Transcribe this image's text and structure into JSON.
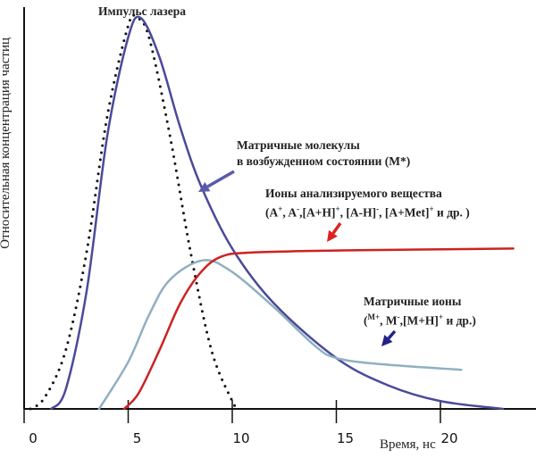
{
  "chart_data": {
    "type": "line",
    "title": "",
    "xlabel": "Время, нс",
    "ylabel": "Относительная концентрация частиц",
    "xlim": [
      0,
      24
    ],
    "ylim": [
      0,
      1
    ],
    "xticks": [
      "0",
      "5",
      "10",
      "15",
      "20"
    ],
    "xtick_values": [
      0,
      5,
      10,
      15,
      20
    ],
    "grid": false,
    "series": [
      {
        "name": "Импульс лазера",
        "color": "#111111",
        "style": "dotted",
        "points": [
          [
            0.3,
            0
          ],
          [
            1,
            0.03
          ],
          [
            2,
            0.15
          ],
          [
            3,
            0.4
          ],
          [
            4,
            0.75
          ],
          [
            5,
            0.98
          ],
          [
            5.4,
            1.0
          ],
          [
            6,
            0.95
          ],
          [
            7,
            0.7
          ],
          [
            8,
            0.4
          ],
          [
            9,
            0.15
          ],
          [
            10,
            0.02
          ],
          [
            10.3,
            0
          ]
        ]
      },
      {
        "name": "Матричные молекулы в возбужденном состоянии (M*)",
        "color": "#4a4a9a",
        "style": "solid",
        "points": [
          [
            1.3,
            0
          ],
          [
            2,
            0.05
          ],
          [
            3,
            0.3
          ],
          [
            4,
            0.7
          ],
          [
            5,
            0.95
          ],
          [
            5.6,
            1.0
          ],
          [
            6.5,
            0.9
          ],
          [
            7.5,
            0.72
          ],
          [
            8.5,
            0.57
          ],
          [
            10,
            0.41
          ],
          [
            12,
            0.27
          ],
          [
            15,
            0.13
          ],
          [
            17.5,
            0.06
          ],
          [
            20,
            0.02
          ],
          [
            23,
            0
          ]
        ]
      },
      {
        "name": "Матричные ионы",
        "color": "#8fb0c0",
        "style": "solid",
        "points": [
          [
            3.6,
            0
          ],
          [
            5,
            0.12
          ],
          [
            6,
            0.24
          ],
          [
            7,
            0.33
          ],
          [
            8.6,
            0.38
          ],
          [
            10,
            0.35
          ],
          [
            12,
            0.26
          ],
          [
            14,
            0.16
          ],
          [
            15,
            0.13
          ],
          [
            17,
            0.115
          ],
          [
            21,
            0.1
          ]
        ]
      },
      {
        "name": "Ионы анализируемого вещества",
        "color": "#cc2222",
        "style": "solid",
        "points": [
          [
            4.8,
            0
          ],
          [
            5.5,
            0.04
          ],
          [
            6.5,
            0.15
          ],
          [
            7.5,
            0.27
          ],
          [
            8.5,
            0.35
          ],
          [
            9.5,
            0.39
          ],
          [
            11,
            0.4
          ],
          [
            15,
            0.405
          ],
          [
            23.5,
            0.41
          ]
        ]
      }
    ],
    "annotations": {
      "laser": "Импульс лазера",
      "mstar_line1": "Матричные молекулы",
      "mstar_line2": "в возбужденном состоянии (M*)",
      "analyte_line1": "Ионы анализируемого вещества",
      "analyte_line2_parts": [
        "(A",
        "+",
        ", A",
        "-",
        ",[A+H]",
        "+",
        ", [A-H]",
        "-",
        ", [A+Met]",
        "+",
        " и др. )"
      ],
      "matrix_line1": "Матричные ионы",
      "matrix_line2_parts": [
        "(",
        "M+",
        ", M",
        "-",
        ",[M+H]",
        "+",
        " и др.)"
      ]
    },
    "arrow_colors": {
      "mstar": "#5a5aaa",
      "analyte": "#dd2222",
      "matrix": "#22228a"
    }
  }
}
